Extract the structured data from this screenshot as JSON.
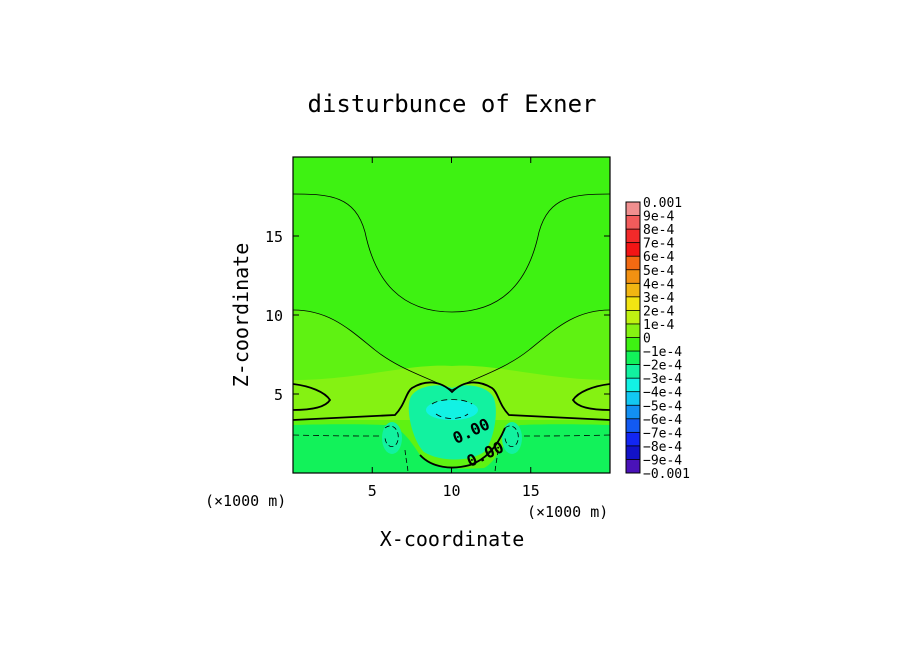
{
  "chart_data": {
    "type": "heatmap",
    "title": "disturbunce of Exner",
    "xlabel": "X-coordinate",
    "ylabel": "Z-coordinate",
    "x_unit": "(×1000 m)",
    "y_unit": "(×1000 m)",
    "xlim": [
      0,
      20
    ],
    "ylim": [
      0,
      20
    ],
    "x_ticks": [
      "5",
      "10",
      "15"
    ],
    "x_tick_values": [
      5,
      10,
      15
    ],
    "y_ticks": [
      "5",
      "10",
      "15"
    ],
    "y_tick_values": [
      5,
      10,
      15
    ],
    "contour_labels": [
      "0.00",
      "0.00"
    ],
    "colorbar": {
      "labels": [
        "0.001",
        "9e-4",
        "8e-4",
        "7e-4",
        "6e-4",
        "5e-4",
        "4e-4",
        "3e-4",
        "2e-4",
        "1e-4",
        "0",
        "−1e-4",
        "−2e-4",
        "−3e-4",
        "−4e-4",
        "−5e-4",
        "−6e-4",
        "−7e-4",
        "−8e-4",
        "−9e-4",
        "−0.001"
      ],
      "values": [
        0.001,
        0.0009,
        0.0008,
        0.0007,
        0.0006,
        0.0005,
        0.0004,
        0.0003,
        0.0002,
        0.0001,
        0,
        -0.0001,
        -0.0002,
        -0.0003,
        -0.0004,
        -0.0005,
        -0.0006,
        -0.0007,
        -0.0008,
        -0.0009,
        -0.001
      ],
      "colors": [
        "#f08f8f",
        "#f25b5b",
        "#f22a2a",
        "#f21515",
        "#f26a12",
        "#f29112",
        "#f2b612",
        "#f2e412",
        "#bff212",
        "#85f212",
        "#3ef212",
        "#12f25a",
        "#12f2a0",
        "#12f2e4",
        "#12c8f2",
        "#1290f2",
        "#125af2",
        "#1226f2",
        "#1212c8",
        "#4a12b8"
      ]
    },
    "field_colors": {
      "upper_band": "#3ef212",
      "mid_band": "#5ff212",
      "low_ridge": "#85f212",
      "bottom_layer": "#12f25a",
      "dip_core": "#12f2a0",
      "dip_center": "#12f2e4"
    }
  }
}
